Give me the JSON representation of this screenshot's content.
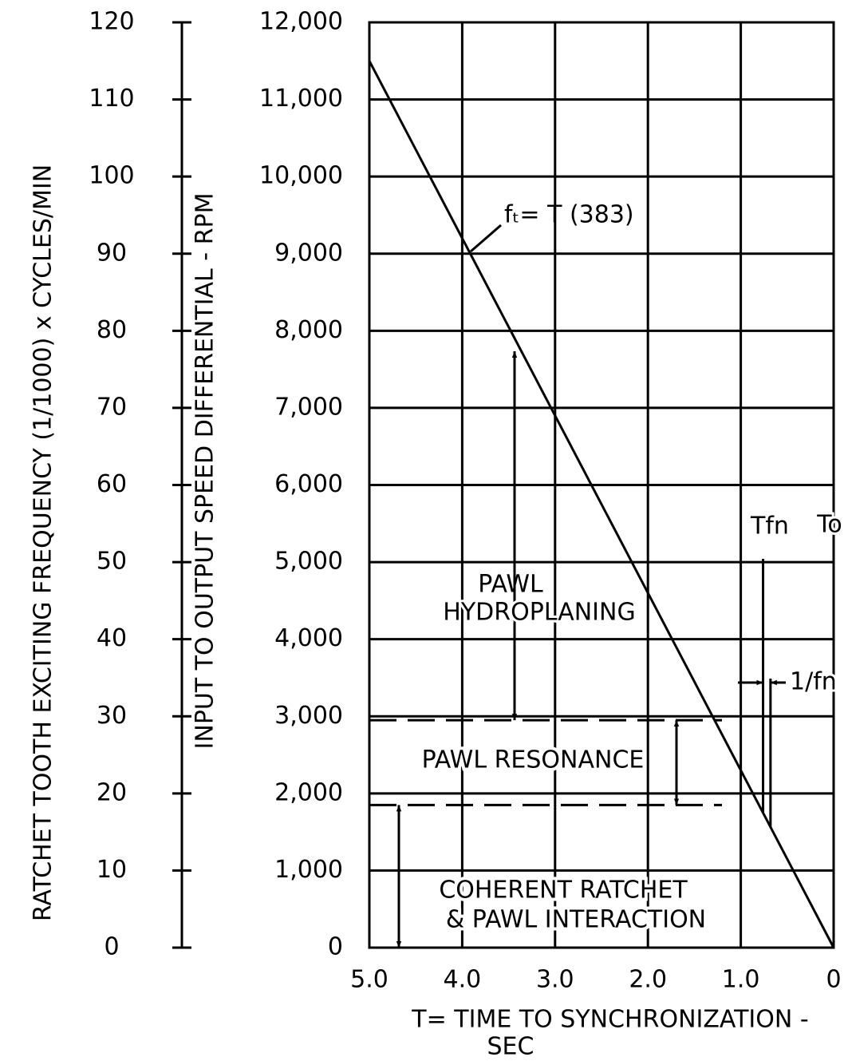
{
  "chart_data": {
    "type": "line",
    "xlabel": [
      "T= TIME TO SYNCHRONIZATION -",
      "SEC"
    ],
    "ylabel": "INPUT TO OUTPUT SPEED DIFFERENTIAL - RPM",
    "y2label": "RATCHET TOOTH EXCITING FREQUENCY (1/1000) x CYCLES/MIN",
    "xlim": [
      5,
      0
    ],
    "xticks": [
      {
        "value": 5,
        "label": "5.0"
      },
      {
        "value": 4,
        "label": "4.0"
      },
      {
        "value": 3,
        "label": "3.0"
      },
      {
        "value": 2,
        "label": "2.0"
      },
      {
        "value": 1,
        "label": "1.0"
      },
      0
    ],
    "ylim": [
      0,
      12000
    ],
    "yticks": [
      0,
      {
        "value": 1000,
        "label": "1,000"
      },
      {
        "value": 2000,
        "label": "2,000"
      },
      {
        "value": 3000,
        "label": "3,000"
      },
      {
        "value": 4000,
        "label": "4,000"
      },
      {
        "value": 5000,
        "label": "5,000"
      },
      {
        "value": 6000,
        "label": "6,000"
      },
      {
        "value": 7000,
        "label": "7,000"
      },
      {
        "value": 8000,
        "label": "8,000"
      },
      {
        "value": 9000,
        "label": "9,000"
      },
      {
        "value": 10000,
        "label": "10,000"
      },
      {
        "value": 11000,
        "label": "11,000"
      },
      {
        "value": 12000,
        "label": "12,000"
      }
    ],
    "y2lim": [
      0,
      120
    ],
    "y2ticks": [
      0,
      10,
      20,
      30,
      40,
      50,
      60,
      70,
      80,
      90,
      100,
      110,
      120
    ],
    "grid": true,
    "series": [
      {
        "x": [
          5,
          0
        ],
        "values": [
          11500,
          0
        ],
        "color": "#000000",
        "label": "fₜ= T (383)"
      }
    ],
    "reference_lines": [
      {
        "y": 2950
      },
      {
        "y": 1850
      },
      {
        "x": 0.76
      },
      {
        "x": 0.68
      }
    ],
    "annotations": {
      "hydroplaning": [
        "PAWL",
        "HYDROPLANING"
      ],
      "resonance": "PAWL  RESONANCE",
      "coherent": [
        "COHERENT RATCHET",
        "& PAWL  INTERACTION"
      ],
      "tfn": "Tfn",
      "to": "To",
      "inv_fn": "1/fn"
    }
  }
}
